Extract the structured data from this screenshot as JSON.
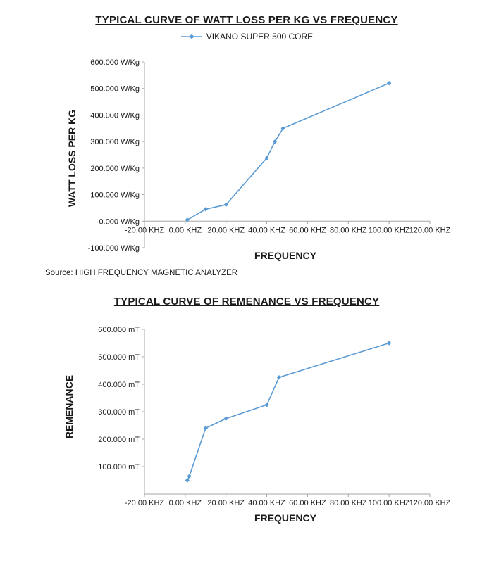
{
  "source_note": "Source: HIGH FREQUENCY MAGNETIC ANALYZER",
  "chart_data": [
    {
      "type": "line",
      "title": "TYPICAL CURVE OF WATT LOSS PER KG VS FREQUENCY",
      "legend": {
        "label": "VIKANO SUPER 500 CORE"
      },
      "legend_position": "top",
      "xlabel": "FREQUENCY",
      "ylabel": "WATT LOSS PER KG",
      "xlim": [
        -20,
        120
      ],
      "ylim": [
        -100,
        600
      ],
      "grid": false,
      "axis_cross_y": 0,
      "x_ticks": {
        "values": [
          -20,
          0,
          20,
          40,
          60,
          80,
          100,
          120
        ],
        "labels": [
          "-20.00 KHZ",
          "0.00 KHZ",
          "20.00 KHZ",
          "40.00 KHZ",
          "60.00 KHZ",
          "80.00 KHZ",
          "100.00 KHZ",
          "120.00 KHZ"
        ]
      },
      "y_ticks": {
        "values": [
          600,
          500,
          400,
          300,
          200,
          100,
          0,
          -100
        ],
        "labels": [
          "600.000 W/Kg",
          "500.000 W/Kg",
          "400.000 W/Kg",
          "300.000 W/Kg",
          "200.000 W/Kg",
          "100.000 W/Kg",
          "0.000 W/Kg",
          "-100.000 W/Kg"
        ]
      },
      "series": [
        {
          "name": "VIKANO SUPER 500 CORE",
          "color": "#5b9bd5",
          "marker": "diamond",
          "points": [
            [
              1,
              5
            ],
            [
              10,
              45
            ],
            [
              20,
              62
            ],
            [
              40,
              238
            ],
            [
              44,
              300
            ],
            [
              48,
              350
            ],
            [
              100,
              520
            ]
          ]
        }
      ]
    },
    {
      "type": "line",
      "title": "TYPICAL CURVE OF REMENANCE VS FREQUENCY",
      "legend_position": "none",
      "xlabel": "FREQUENCY",
      "ylabel": "REMENANCE",
      "xlim": [
        -20,
        120
      ],
      "ylim": [
        0,
        600
      ],
      "grid": false,
      "axis_cross_y": 0,
      "x_ticks": {
        "values": [
          -20,
          0,
          20,
          40,
          60,
          80,
          100,
          120
        ],
        "labels": [
          "-20.00 KHZ",
          "0.00 KHZ",
          "20.00 KHZ",
          "40.00 KHZ",
          "60.00 KHZ",
          "80.00 KHZ",
          "100.00 KHZ",
          "120.00 KHZ"
        ]
      },
      "y_ticks": {
        "values": [
          600,
          500,
          400,
          300,
          200,
          100
        ],
        "labels": [
          "600.000 mT",
          "500.000 mT",
          "400.000 mT",
          "300.000 mT",
          "200.000 mT",
          "100.000 mT"
        ]
      },
      "series": [
        {
          "name": "REMENANCE",
          "color": "#5b9bd5",
          "marker": "diamond",
          "points": [
            [
              1,
              50
            ],
            [
              2,
              65
            ],
            [
              10,
              240
            ],
            [
              20,
              275
            ],
            [
              40,
              325
            ],
            [
              46,
              425
            ],
            [
              100,
              550
            ]
          ]
        }
      ]
    }
  ]
}
